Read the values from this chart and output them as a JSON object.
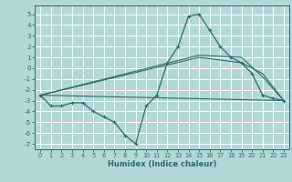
{
  "xlabel": "Humidex (Indice chaleur)",
  "background_color": "#b2d8d8",
  "grid_color": "#ffffff",
  "line_color": "#2e6b6b",
  "xlim": [
    -0.5,
    23.5
  ],
  "ylim": [
    -7.5,
    5.8
  ],
  "xticks": [
    0,
    1,
    2,
    3,
    4,
    5,
    6,
    7,
    8,
    9,
    10,
    11,
    12,
    13,
    14,
    15,
    16,
    17,
    18,
    19,
    20,
    21,
    22,
    23
  ],
  "yticks": [
    -7,
    -6,
    -5,
    -4,
    -3,
    -2,
    -1,
    0,
    1,
    2,
    3,
    4,
    5
  ],
  "lines": [
    {
      "x": [
        0,
        1,
        2,
        3,
        4,
        5,
        6,
        7,
        8,
        9,
        10,
        11,
        12,
        13,
        14,
        15,
        16,
        17,
        18,
        19,
        20,
        21,
        22,
        23
      ],
      "y": [
        -2.5,
        -3.5,
        -3.5,
        -3.2,
        -3.2,
        -4.0,
        -4.5,
        -5.0,
        -6.2,
        -7.0,
        -3.5,
        -2.5,
        0.5,
        2.0,
        4.8,
        5.0,
        3.5,
        2.0,
        1.0,
        0.5,
        -0.5,
        -2.5,
        -2.8,
        -3.0
      ],
      "marker": true
    },
    {
      "x": [
        0,
        23
      ],
      "y": [
        -2.5,
        -3.0
      ],
      "marker": false
    },
    {
      "x": [
        0,
        15,
        19,
        21,
        23
      ],
      "y": [
        -2.5,
        1.0,
        0.5,
        -0.5,
        -3.0
      ],
      "marker": false
    },
    {
      "x": [
        0,
        15,
        19,
        21,
        23
      ],
      "y": [
        -2.5,
        1.2,
        1.0,
        -0.8,
        -3.0
      ],
      "marker": false
    }
  ]
}
